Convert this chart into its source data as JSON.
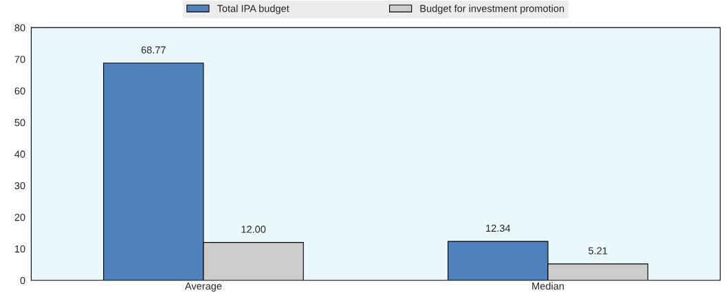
{
  "chart_data": {
    "type": "bar",
    "categories": [
      "Average",
      "Median"
    ],
    "series": [
      {
        "name": "Total IPA budget",
        "color": "#4f81bd",
        "values": [
          68.77,
          12.34
        ],
        "value_labels": [
          "68.77",
          "12.34"
        ]
      },
      {
        "name": "Budget for investment promotion",
        "color": "#cccccc",
        "values": [
          12.0,
          5.21
        ],
        "value_labels": [
          "12.00",
          "5.21"
        ]
      }
    ],
    "ylim": [
      0,
      80
    ],
    "yticks": [
      0,
      10,
      20,
      30,
      40,
      50,
      60,
      70,
      80
    ],
    "grid": false,
    "legend": "top"
  }
}
